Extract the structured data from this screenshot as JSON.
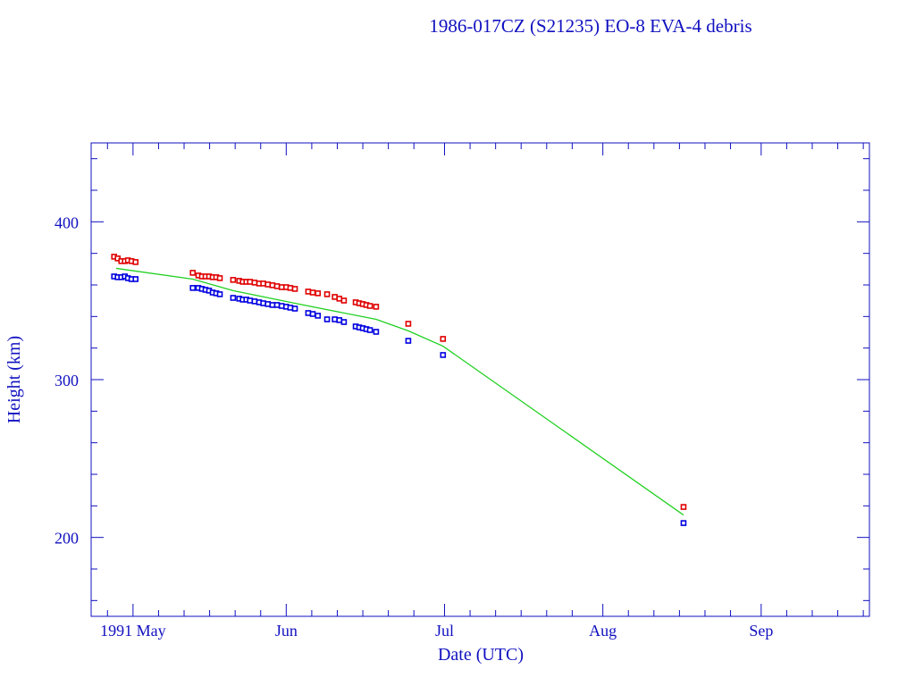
{
  "chart_data": {
    "type": "scatter",
    "title": "1986-017CZ (S21235) EO-8 EVA-4 debris",
    "xlabel": "Date (UTC)",
    "ylabel": "Height (km)",
    "x_units": "days since 1991 May 1",
    "xlim": [
      -8.2,
      144.2
    ],
    "ylim": [
      150,
      450
    ],
    "x_ticks": [
      {
        "value": 0,
        "label": "1991 May"
      },
      {
        "value": 30,
        "label": "Jun"
      },
      {
        "value": 61,
        "label": "Jul"
      },
      {
        "value": 92,
        "label": "Aug"
      },
      {
        "value": 123,
        "label": "Sep"
      }
    ],
    "y_ticks": [
      {
        "value": 200,
        "label": "200"
      },
      {
        "value": 300,
        "label": "300"
      },
      {
        "value": 400,
        "label": "400"
      }
    ],
    "colors": {
      "axes": "#1010c0",
      "apogee": "#e00000",
      "perigee": "#0000e0",
      "mean": "#20d020"
    },
    "series": [
      {
        "name": "apogee",
        "kind": "points",
        "color": "#e00000",
        "points": [
          [
            -3.7,
            377.9
          ],
          [
            -3.0,
            376.8
          ],
          [
            -2.3,
            375.1
          ],
          [
            -1.6,
            375.1
          ],
          [
            -1.0,
            375.6
          ],
          [
            -0.3,
            375.1
          ],
          [
            0.5,
            374.5
          ],
          [
            11.7,
            367.7
          ],
          [
            12.8,
            366.0
          ],
          [
            13.5,
            365.4
          ],
          [
            14.2,
            365.4
          ],
          [
            14.9,
            365.4
          ],
          [
            15.6,
            364.9
          ],
          [
            16.3,
            364.9
          ],
          [
            17.0,
            364.3
          ],
          [
            19.6,
            363.2
          ],
          [
            20.8,
            362.6
          ],
          [
            21.5,
            362.0
          ],
          [
            22.2,
            362.0
          ],
          [
            22.9,
            362.0
          ],
          [
            23.8,
            361.5
          ],
          [
            24.7,
            360.9
          ],
          [
            25.5,
            360.9
          ],
          [
            26.4,
            360.3
          ],
          [
            27.3,
            359.8
          ],
          [
            28.2,
            359.2
          ],
          [
            29.1,
            358.6
          ],
          [
            30.0,
            358.6
          ],
          [
            30.8,
            358.1
          ],
          [
            31.7,
            357.5
          ],
          [
            34.3,
            355.8
          ],
          [
            35.2,
            355.2
          ],
          [
            36.2,
            354.7
          ],
          [
            38.0,
            354.1
          ],
          [
            39.5,
            352.4
          ],
          [
            40.4,
            351.3
          ],
          [
            41.3,
            350.1
          ],
          [
            43.6,
            349.0
          ],
          [
            44.3,
            348.4
          ],
          [
            45.0,
            347.9
          ],
          [
            45.7,
            347.3
          ],
          [
            46.4,
            346.7
          ],
          [
            47.6,
            346.2
          ],
          [
            53.9,
            335.4
          ],
          [
            60.7,
            325.8
          ],
          [
            107.8,
            219.3
          ]
        ]
      },
      {
        "name": "perigee",
        "kind": "points",
        "color": "#0000e0",
        "points": [
          [
            -3.7,
            365.4
          ],
          [
            -3.0,
            364.9
          ],
          [
            -2.3,
            364.9
          ],
          [
            -1.6,
            365.4
          ],
          [
            -1.0,
            364.3
          ],
          [
            -0.3,
            363.7
          ],
          [
            0.5,
            363.7
          ],
          [
            11.7,
            358.1
          ],
          [
            12.8,
            358.1
          ],
          [
            13.5,
            357.5
          ],
          [
            14.2,
            356.9
          ],
          [
            14.9,
            356.4
          ],
          [
            15.6,
            355.2
          ],
          [
            16.3,
            354.7
          ],
          [
            17.0,
            354.1
          ],
          [
            19.6,
            351.8
          ],
          [
            20.8,
            351.3
          ],
          [
            21.5,
            350.7
          ],
          [
            22.2,
            350.7
          ],
          [
            22.9,
            350.1
          ],
          [
            23.8,
            349.6
          ],
          [
            24.7,
            349.0
          ],
          [
            25.5,
            348.4
          ],
          [
            26.4,
            347.9
          ],
          [
            27.3,
            347.3
          ],
          [
            28.2,
            347.3
          ],
          [
            29.1,
            346.7
          ],
          [
            30.0,
            346.2
          ],
          [
            30.8,
            345.6
          ],
          [
            31.7,
            345.0
          ],
          [
            34.3,
            342.2
          ],
          [
            35.2,
            341.6
          ],
          [
            36.2,
            340.5
          ],
          [
            38.0,
            338.2
          ],
          [
            39.5,
            338.2
          ],
          [
            40.4,
            337.7
          ],
          [
            41.3,
            336.5
          ],
          [
            43.6,
            333.7
          ],
          [
            44.3,
            333.1
          ],
          [
            45.0,
            332.6
          ],
          [
            45.7,
            332.0
          ],
          [
            46.4,
            331.4
          ],
          [
            47.6,
            330.3
          ],
          [
            53.9,
            324.6
          ],
          [
            60.7,
            315.6
          ],
          [
            107.8,
            209.1
          ]
        ]
      },
      {
        "name": "mean",
        "kind": "line",
        "color": "#20d020",
        "points": [
          [
            -3.3,
            370.5
          ],
          [
            11.7,
            363.7
          ],
          [
            19.6,
            356.4
          ],
          [
            31.7,
            348.4
          ],
          [
            34.3,
            346.7
          ],
          [
            47.6,
            338.2
          ],
          [
            53.9,
            330.9
          ],
          [
            60.7,
            321.2
          ],
          [
            107.8,
            214.2
          ]
        ]
      }
    ]
  }
}
